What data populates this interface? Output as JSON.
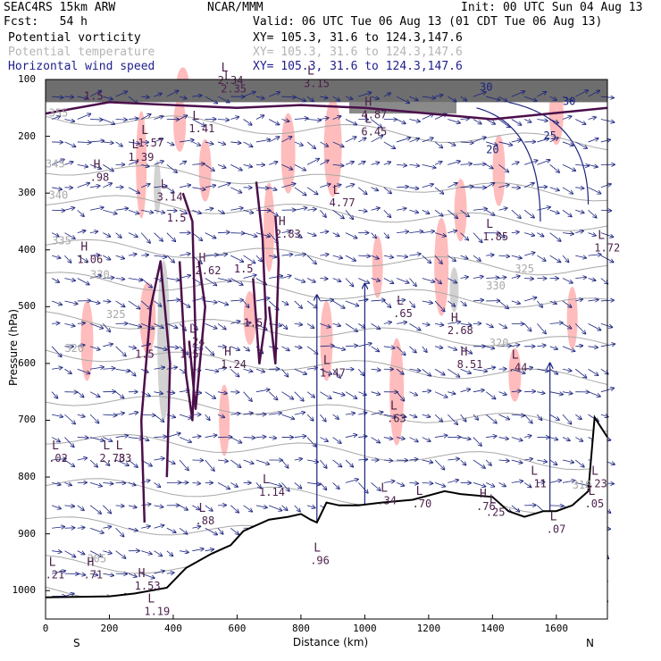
{
  "header": {
    "model": "SEAC4RS 15km ARW",
    "forecast": "Fcst:   54 h",
    "center": "NCAR/MMM",
    "init": "Init: 00 UTC Sun 04 Aug 13",
    "valid": "Valid: 06 UTC Tue 06 Aug 13 (01 CDT Tue 06 Aug 13)",
    "fields": [
      {
        "name": "Potential vorticity",
        "xy": "XY= 105.3, 31.6 to 124.3,147.6",
        "color": "#000000"
      },
      {
        "name": "Potential temperature",
        "xy": "XY= 105.3, 31.6 to 124.3,147.6",
        "color": "#b4b4b4"
      },
      {
        "name": "Horizontal wind speed",
        "xy": "XY= 105.3, 31.6 to 124.3,147.6",
        "color": "#1e1e8c"
      }
    ]
  },
  "colors": {
    "pv_contour": "#4b0f4b",
    "theta": "#a8a8a8",
    "wind_speed": "#1a237e",
    "positive_pv_shade": "#ffbcbc",
    "negative_pv_shade": "#d2d2d2",
    "terrain": "#000000"
  },
  "chart_data": {
    "type": "cross-section",
    "xlabel": "Distance (km)",
    "ylabel": "Pressure (hPa)",
    "xlim": [
      0,
      1760
    ],
    "ylim": [
      1050,
      100
    ],
    "x_ticks": [
      "0",
      "200",
      "400",
      "600",
      "800",
      "1000",
      "1200",
      "1400",
      "1600"
    ],
    "x_tick_values": [
      0,
      200,
      400,
      600,
      800,
      1000,
      1200,
      1400,
      1600
    ],
    "y_ticks": [
      "100",
      "200",
      "300",
      "400",
      "500",
      "600",
      "700",
      "800",
      "900",
      "1000"
    ],
    "y_tick_values": [
      100,
      200,
      300,
      400,
      500,
      600,
      700,
      800,
      900,
      1000
    ],
    "endpoints": {
      "left": "S",
      "right": "N"
    },
    "terrain": {
      "x": [
        0,
        200,
        280,
        380,
        440,
        520,
        580,
        620,
        700,
        760,
        800,
        830,
        850,
        880,
        920,
        980,
        1050,
        1150,
        1250,
        1300,
        1400,
        1450,
        1500,
        1560,
        1600,
        1650,
        1700,
        1720,
        1760
      ],
      "p": [
        1012,
        1010,
        1005,
        995,
        960,
        935,
        920,
        895,
        875,
        870,
        865,
        875,
        880,
        845,
        850,
        850,
        845,
        840,
        825,
        830,
        835,
        860,
        870,
        860,
        860,
        850,
        825,
        695,
        730
      ]
    },
    "theta_contours": [
      {
        "label": "355",
        "x": 10,
        "p": 165
      },
      {
        "label": "345",
        "x": 0,
        "p": 255
      },
      {
        "label": "340",
        "x": 10,
        "p": 310
      },
      {
        "label": "335",
        "x": 20,
        "p": 390
      },
      {
        "label": "330",
        "x": 140,
        "p": 450
      },
      {
        "label": "325",
        "x": 190,
        "p": 520
      },
      {
        "label": "320",
        "x": 60,
        "p": 580
      },
      {
        "label": "330",
        "x": 1380,
        "p": 470
      },
      {
        "label": "325",
        "x": 1470,
        "p": 440
      },
      {
        "label": "320",
        "x": 1390,
        "p": 570
      },
      {
        "label": "310",
        "x": 1650,
        "p": 820
      },
      {
        "label": "305",
        "x": 130,
        "p": 950
      }
    ],
    "pv_contour_labels": [
      {
        "label": "1.5",
        "x": 280,
        "p": 590
      },
      {
        "label": "1.5",
        "x": 420,
        "p": 590
      },
      {
        "label": "1.5",
        "x": 380,
        "p": 350
      },
      {
        "label": "1.5",
        "x": 590,
        "p": 440
      },
      {
        "label": "1.5",
        "x": 120,
        "p": 135
      },
      {
        "label": "1.5",
        "x": 620,
        "p": 535
      }
    ],
    "wind_speed_labels": [
      {
        "label": "20",
        "x": 1380,
        "p": 230
      },
      {
        "label": "25",
        "x": 1560,
        "p": 205
      },
      {
        "label": "30",
        "x": 1360,
        "p": 120
      },
      {
        "label": "30",
        "x": 1620,
        "p": 145
      }
    ],
    "extrema": [
      {
        "type": "L",
        "value": "1.57",
        "x": 300,
        "p": 215
      },
      {
        "type": "L",
        "value": "1.39",
        "x": 270,
        "p": 240
      },
      {
        "type": "H",
        "value": ".98",
        "x": 150,
        "p": 275
      },
      {
        "type": "L",
        "value": "1.41",
        "x": 460,
        "p": 190
      },
      {
        "type": "L",
        "value": "2.35",
        "x": 560,
        "p": 120
      },
      {
        "type": "L",
        "value": "3.14",
        "x": 360,
        "p": 310
      },
      {
        "type": "H",
        "value": "2.83",
        "x": 730,
        "p": 375
      },
      {
        "type": "L",
        "value": "4.77",
        "x": 900,
        "p": 320
      },
      {
        "type": "H",
        "value": "4.87",
        "x": 1000,
        "p": 165
      },
      {
        "type": "L",
        "value": "6.45",
        "x": 1000,
        "p": 195
      },
      {
        "type": "L",
        "value": "2.34",
        "x": 550,
        "p": 105
      },
      {
        "type": "L",
        "value": "3.15",
        "x": 820,
        "p": 110
      },
      {
        "type": "L",
        "value": "1.85",
        "x": 1380,
        "p": 380
      },
      {
        "type": "L",
        "value": "1.72",
        "x": 1730,
        "p": 400
      },
      {
        "type": "H",
        "value": "1.06",
        "x": 110,
        "p": 420
      },
      {
        "type": "H",
        "value": "2.62",
        "x": 480,
        "p": 440
      },
      {
        "type": "L",
        "value": ".65",
        "x": 1100,
        "p": 515
      },
      {
        "type": "H",
        "value": "2.68",
        "x": 1270,
        "p": 545
      },
      {
        "type": "L",
        "value": ".24",
        "x": 450,
        "p": 565
      },
      {
        "type": "H",
        "value": "1.24",
        "x": 560,
        "p": 605
      },
      {
        "type": "L",
        "value": "1.47",
        "x": 870,
        "p": 620
      },
      {
        "type": "H",
        "value": "8.51",
        "x": 1300,
        "p": 605
      },
      {
        "type": "L",
        "value": ".44",
        "x": 1460,
        "p": 610
      },
      {
        "type": "L",
        "value": ".63",
        "x": 1080,
        "p": 700
      },
      {
        "type": "L",
        "value": "2.78",
        "x": 180,
        "p": 770
      },
      {
        "type": "L",
        "value": ".33",
        "x": 220,
        "p": 770
      },
      {
        "type": "L",
        "value": ".02",
        "x": 20,
        "p": 770
      },
      {
        "type": "L",
        "value": "1.14",
        "x": 680,
        "p": 830
      },
      {
        "type": "L",
        "value": ".88",
        "x": 480,
        "p": 880
      },
      {
        "type": "L",
        "value": ".34",
        "x": 1050,
        "p": 845
      },
      {
        "type": "L",
        "value": ".70",
        "x": 1160,
        "p": 850
      },
      {
        "type": "H",
        "value": ".76",
        "x": 1360,
        "p": 855
      },
      {
        "type": "L",
        "value": ".25",
        "x": 1390,
        "p": 865
      },
      {
        "type": "L",
        "value": ".11",
        "x": 1520,
        "p": 815
      },
      {
        "type": "L",
        "value": ".07",
        "x": 1580,
        "p": 895
      },
      {
        "type": "L",
        "value": ".23",
        "x": 1710,
        "p": 815
      },
      {
        "type": "L",
        "value": ".05",
        "x": 1700,
        "p": 850
      },
      {
        "type": "L",
        "value": ".96",
        "x": 840,
        "p": 950
      },
      {
        "type": "H",
        "value": ".71",
        "x": 130,
        "p": 975
      },
      {
        "type": "L",
        "value": ".21",
        "x": 10,
        "p": 975
      },
      {
        "type": "H",
        "value": "1.53",
        "x": 290,
        "p": 995
      },
      {
        "type": "L",
        "value": "1.19",
        "x": 320,
        "p": 1040
      }
    ]
  }
}
